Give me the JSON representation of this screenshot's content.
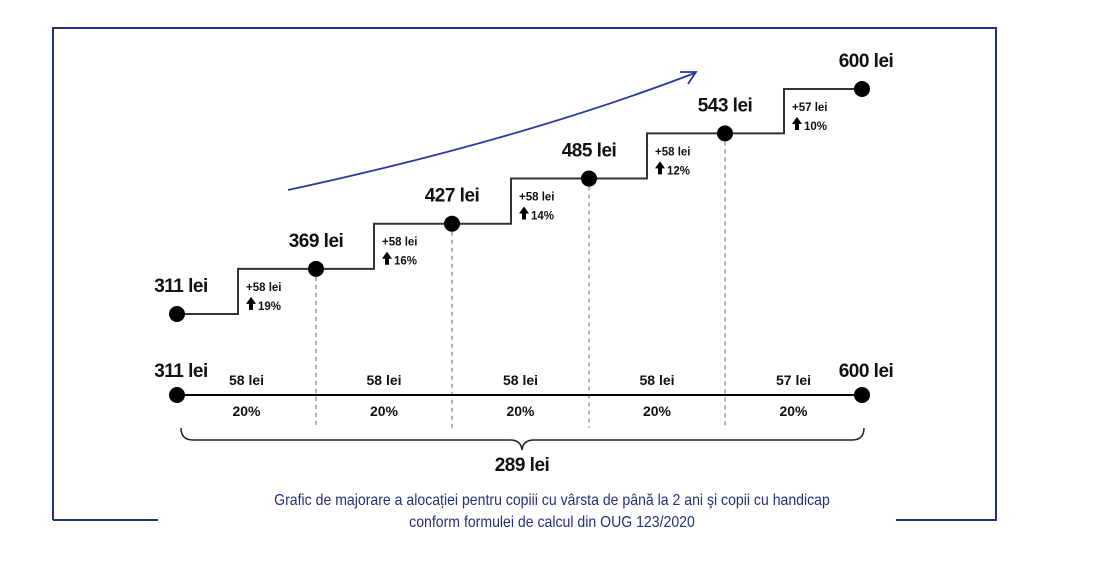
{
  "chart_data": {
    "type": "line",
    "title": "Grafic de majorare a alocației pentru copiii cu vârsta de până la 2 ani şi copii cu handicap",
    "subtitle": "conform formulei de calcul din OUG 123/2020",
    "unit": "lei",
    "values": [
      311,
      369,
      427,
      485,
      543,
      600
    ],
    "value_labels": [
      "311 lei",
      "369 lei",
      "427 lei",
      "485 lei",
      "543 lei",
      "600 lei"
    ],
    "increments": [
      {
        "amount": "+58 lei",
        "percent": "19%"
      },
      {
        "amount": "+58 lei",
        "percent": "16%"
      },
      {
        "amount": "+58 lei",
        "percent": "14%"
      },
      {
        "amount": "+58 lei",
        "percent": "12%"
      },
      {
        "amount": "+57 lei",
        "percent": "10%"
      }
    ],
    "timeline": {
      "start_label": "311 lei",
      "end_label": "600 lei",
      "segments": [
        {
          "amount": "58 lei",
          "share": "20%"
        },
        {
          "amount": "58 lei",
          "share": "20%"
        },
        {
          "amount": "58 lei",
          "share": "20%"
        },
        {
          "amount": "58 lei",
          "share": "20%"
        },
        {
          "amount": "57 lei",
          "share": "20%"
        }
      ],
      "total_label": "289 lei"
    },
    "colors": {
      "line": "#333333",
      "frame": "#23307a",
      "arrow": "#2a3a9a",
      "caption": "#23307a"
    }
  }
}
